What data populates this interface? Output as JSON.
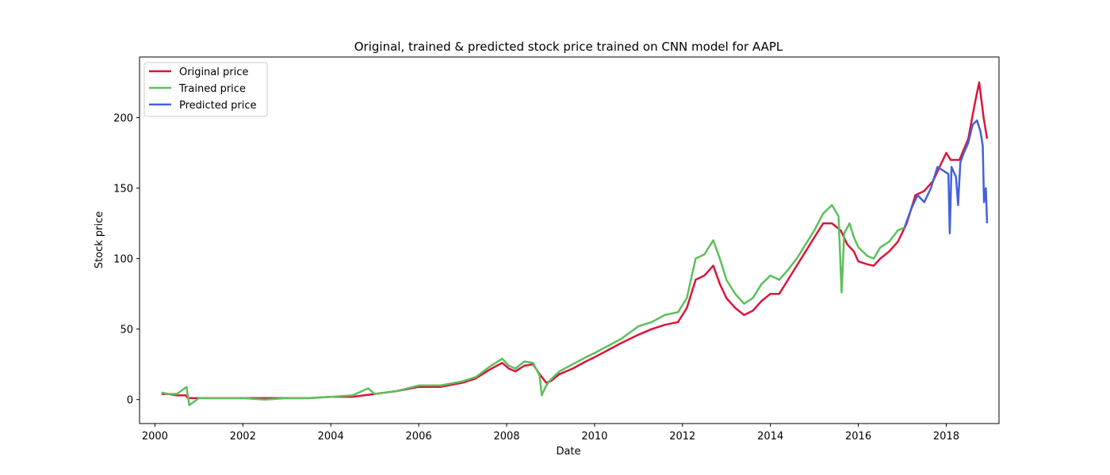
{
  "chart_data": {
    "type": "line",
    "title": "Original, trained & predicted stock price trained on CNN model for AAPL",
    "xlabel": "Date",
    "ylabel": "Stock price",
    "xlim": [
      1999.65,
      2019.2
    ],
    "ylim": [
      -17,
      243
    ],
    "x_ticks": [
      2000,
      2002,
      2004,
      2006,
      2008,
      2010,
      2012,
      2014,
      2016,
      2018
    ],
    "x_tick_labels": [
      "2000",
      "2002",
      "2004",
      "2006",
      "2008",
      "2010",
      "2012",
      "2014",
      "2016",
      "2018"
    ],
    "y_ticks": [
      0,
      50,
      100,
      150,
      200
    ],
    "y_tick_labels": [
      "0",
      "50",
      "100",
      "150",
      "200"
    ],
    "grid": false,
    "legend_position": "top-left",
    "series": [
      {
        "name": "Original price",
        "color": "#dc143c",
        "x": [
          2000.15,
          2000.3,
          2000.5,
          2000.7,
          2000.75,
          2001.0,
          2001.5,
          2002.0,
          2002.5,
          2003.0,
          2003.5,
          2004.0,
          2004.5,
          2005.0,
          2005.5,
          2006.0,
          2006.5,
          2007.0,
          2007.3,
          2007.6,
          2007.9,
          2008.05,
          2008.2,
          2008.4,
          2008.6,
          2008.75,
          2008.9,
          2009.0,
          2009.2,
          2009.5,
          2009.8,
          2010.0,
          2010.3,
          2010.6,
          2011.0,
          2011.3,
          2011.6,
          2011.9,
          2012.1,
          2012.3,
          2012.5,
          2012.7,
          2012.85,
          2013.0,
          2013.2,
          2013.4,
          2013.6,
          2013.8,
          2014.0,
          2014.2,
          2014.4,
          2014.6,
          2014.8,
          2015.0,
          2015.2,
          2015.4,
          2015.6,
          2015.75,
          2015.9,
          2016.0,
          2016.2,
          2016.35,
          2016.5,
          2016.7,
          2016.9,
          2017.1,
          2017.3,
          2017.5,
          2017.7,
          2017.85,
          2018.0,
          2018.1,
          2018.3,
          2018.5,
          2018.65,
          2018.75,
          2018.85,
          2018.93
        ],
        "y": [
          4,
          4,
          3,
          3,
          1,
          1,
          1,
          1,
          1,
          1,
          1,
          2,
          2,
          4,
          6,
          9,
          9,
          12,
          15,
          21,
          26,
          22,
          20,
          24,
          25,
          18,
          12,
          13,
          18,
          22,
          27,
          30,
          35,
          40,
          46,
          50,
          53,
          55,
          65,
          85,
          88,
          95,
          82,
          72,
          65,
          60,
          63,
          70,
          75,
          75,
          85,
          95,
          105,
          115,
          125,
          125,
          120,
          110,
          105,
          98,
          96,
          95,
          100,
          105,
          112,
          125,
          145,
          148,
          155,
          165,
          175,
          170,
          170,
          185,
          210,
          225,
          200,
          185
        ]
      },
      {
        "name": "Trained price",
        "color": "#5cbf5c",
        "x": [
          2000.15,
          2000.3,
          2000.5,
          2000.72,
          2000.78,
          2001.0,
          2001.5,
          2002.0,
          2002.5,
          2003.0,
          2003.5,
          2004.0,
          2004.5,
          2004.85,
          2005.0,
          2005.5,
          2006.0,
          2006.5,
          2007.0,
          2007.3,
          2007.6,
          2007.9,
          2008.05,
          2008.2,
          2008.4,
          2008.6,
          2008.75,
          2008.8,
          2008.9,
          2009.0,
          2009.2,
          2009.5,
          2009.8,
          2010.0,
          2010.3,
          2010.6,
          2011.0,
          2011.3,
          2011.6,
          2011.9,
          2012.1,
          2012.3,
          2012.5,
          2012.7,
          2012.85,
          2013.0,
          2013.2,
          2013.4,
          2013.6,
          2013.8,
          2014.0,
          2014.2,
          2014.4,
          2014.6,
          2014.8,
          2015.0,
          2015.2,
          2015.4,
          2015.55,
          2015.62,
          2015.68,
          2015.8,
          2015.9,
          2016.0,
          2016.2,
          2016.35,
          2016.5,
          2016.7,
          2016.9,
          2017.05
        ],
        "y": [
          5,
          4,
          4,
          9,
          -4,
          1,
          1,
          1,
          0,
          1,
          1,
          2,
          3,
          8,
          4,
          6,
          10,
          10,
          13,
          16,
          23,
          29,
          24,
          22,
          27,
          26,
          17,
          3,
          10,
          14,
          20,
          25,
          30,
          33,
          38,
          43,
          52,
          55,
          60,
          62,
          72,
          100,
          103,
          113,
          100,
          85,
          75,
          68,
          72,
          82,
          88,
          85,
          92,
          100,
          110,
          120,
          132,
          138,
          130,
          76,
          118,
          125,
          115,
          108,
          102,
          100,
          108,
          112,
          120,
          122
        ]
      },
      {
        "name": "Predicted price",
        "color": "#4361d8",
        "x": [
          2017.05,
          2017.2,
          2017.35,
          2017.5,
          2017.65,
          2017.8,
          2017.95,
          2018.05,
          2018.08,
          2018.12,
          2018.22,
          2018.27,
          2018.32,
          2018.4,
          2018.5,
          2018.6,
          2018.7,
          2018.78,
          2018.83,
          2018.86,
          2018.9,
          2018.93
        ],
        "y": [
          122,
          135,
          145,
          140,
          150,
          165,
          162,
          160,
          118,
          165,
          158,
          138,
          168,
          175,
          182,
          195,
          198,
          190,
          180,
          140,
          150,
          125
        ]
      }
    ]
  }
}
